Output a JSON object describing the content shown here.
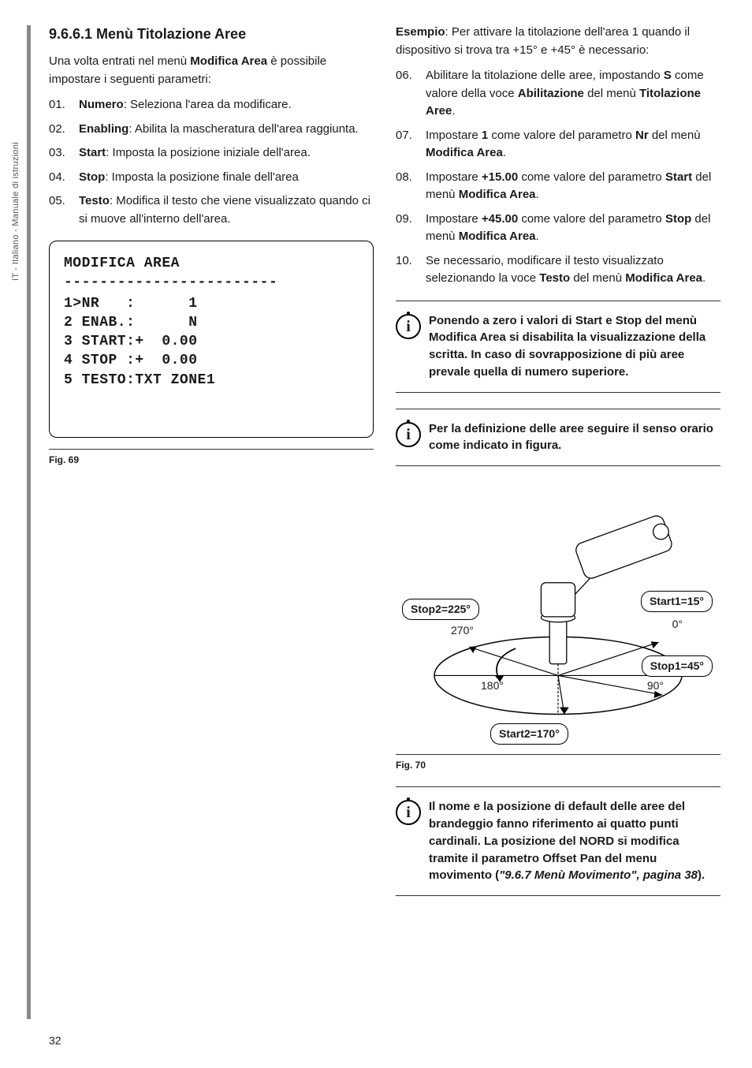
{
  "side_tab": "IT - Italiano - Manuale di istruzioni",
  "page_number": "32",
  "left": {
    "heading": "9.6.6.1  Menù Titolazione Aree",
    "intro_pre": "Una volta entrati nel menù ",
    "intro_bold": "Modifica Area",
    "intro_post": " è possibile impostare i seguenti parametri:",
    "items": [
      {
        "num": "01.",
        "label": "Numero",
        "text": ": Seleziona l'area da modificare."
      },
      {
        "num": "02.",
        "label": "Enabling",
        "text": ": Abilita la mascheratura dell'area raggiunta."
      },
      {
        "num": "03.",
        "label": "Start",
        "text": ": Imposta la posizione iniziale dell'area."
      },
      {
        "num": "04.",
        "label": "Stop",
        "text": ": Imposta la posizione finale dell'area"
      },
      {
        "num": "05.",
        "label": "Testo",
        "text": ": Modifica il testo che viene visualizzato quando ci si muove all'interno dell'area."
      }
    ],
    "osd": {
      "title": "MODIFICA AREA",
      "sep": "------------------------",
      "lines": [
        "1>NR   :      1",
        "2 ENAB.:      N",
        "3 START:+  0.00",
        "4 STOP :+  0.00",
        "5 TESTO:TXT ZONE1"
      ]
    },
    "fig_label": "Fig. 69"
  },
  "right": {
    "example_label": "Esempio",
    "example_text": ": Per attivare la titolazione dell'area 1 quando il dispositivo si trova tra +15° e +45° è necessario:",
    "items": [
      {
        "num": "06.",
        "pre": "Abilitare la titolazione delle aree, impostando ",
        "b1": "S",
        "mid1": " come valore della voce ",
        "b2": "Abilitazione",
        "mid2": " del menù ",
        "b3": "Titolazione Aree",
        "post": "."
      },
      {
        "num": "07.",
        "pre": "Impostare ",
        "b1": "1",
        "mid1": " come valore del parametro ",
        "b2": "Nr",
        "mid2": " del menù ",
        "b3": "Modifica Area",
        "post": "."
      },
      {
        "num": "08.",
        "pre": "Impostare ",
        "b1": "+15.00",
        "mid1": " come valore del parametro ",
        "b2": "Start",
        "mid2": " del menù ",
        "b3": "Modifica Area",
        "post": "."
      },
      {
        "num": "09.",
        "pre": "Impostare ",
        "b1": "+45.00",
        "mid1": " come valore del parametro ",
        "b2": "Stop",
        "mid2": " del menù ",
        "b3": "Modifica Area",
        "post": "."
      },
      {
        "num": "10.",
        "pre": "Se necessario, modificare il testo visualizzato selezionando la voce ",
        "b1": "Testo",
        "mid1": " del menù ",
        "b2": "Modifica Area",
        "mid2": "",
        "b3": "",
        "post": "."
      }
    ],
    "info1": "Ponendo a zero i valori di Start e Stop del menù Modifica Area si disabilita la visualizzazione della scritta. In caso di sovrapposizione di più aree prevale quella di numero superiore.",
    "info2": "Per la definizione delle aree seguire il senso orario come indicato in figura.",
    "diagram": {
      "stop2": "Stop2=225°",
      "start1": "Start1=15°",
      "stop1": "Stop1=45°",
      "start2": "Start2=170°",
      "a0": "0°",
      "a90": "90°",
      "a180": "180°",
      "a270": "270°"
    },
    "fig_label": "Fig. 70",
    "info3_pre": "Il nome e la posizione di default delle aree del brandeggio fanno riferimento ai quatto punti cardinali. La posizione del NORD si modifica tramite il parametro Offset Pan del menu movimento (",
    "info3_link": "\"9.6.7 Menù Movimento\", pagina 38",
    "info3_post": ")."
  }
}
